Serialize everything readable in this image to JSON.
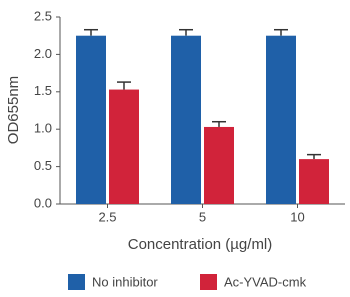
{
  "chart_data": {
    "type": "bar",
    "y_label": "OD655nm",
    "x_label": "Concentration (µg/ml)",
    "categories": [
      "2.5",
      "5",
      "10"
    ],
    "series": [
      {
        "name": "No inhibitor",
        "color": "#1f60a8",
        "values": [
          2.25,
          2.25,
          2.25
        ],
        "errors": [
          0.08,
          0.08,
          0.08
        ]
      },
      {
        "name": "Ac-YVAD-cmk",
        "color": "#d1233a",
        "values": [
          1.53,
          1.03,
          0.6
        ],
        "errors": [
          0.1,
          0.07,
          0.06
        ]
      }
    ],
    "ylim": [
      0,
      2.5
    ],
    "yticks": [
      {
        "value": 0,
        "label": "0.0"
      },
      0.5,
      {
        "value": 1,
        "label": "1.0"
      },
      1.5,
      {
        "value": 2,
        "label": "2.0"
      },
      2.5
    ]
  }
}
